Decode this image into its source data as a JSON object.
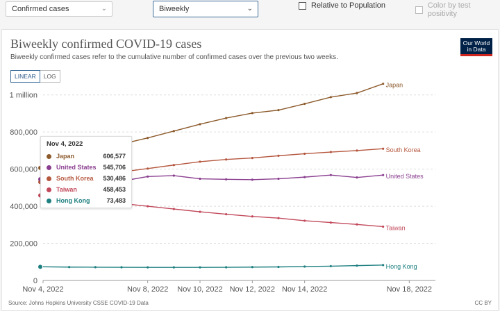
{
  "controls": {
    "metric_select": "Confirmed cases",
    "interval_select": "Biweekly",
    "relative_checkbox": "Relative to Population",
    "color_checkbox": "Color by test positivity"
  },
  "header": {
    "title": "Biweekly confirmed COVID-19 cases",
    "subtitle": "Biweekly confirmed cases refer to the cumulative number of confirmed cases over the previous two weeks.",
    "logo_line1": "Our World",
    "logo_line2": "in Data"
  },
  "scale": {
    "linear_label": "LINEAR",
    "log_label": "LOG",
    "active": "LINEAR"
  },
  "tooltip": {
    "date": "Nov 4, 2022",
    "rows": [
      {
        "name": "Japan",
        "value": "606,577",
        "color": "#8c5a2b"
      },
      {
        "name": "United States",
        "value": "545,706",
        "color": "#8a3e8f"
      },
      {
        "name": "South Korea",
        "value": "530,486",
        "color": "#b5573e"
      },
      {
        "name": "Taiwan",
        "value": "458,453",
        "color": "#c2495b"
      },
      {
        "name": "Hong Kong",
        "value": "73,483",
        "color": "#1e7f80"
      }
    ]
  },
  "footer": {
    "source": "Source: Johns Hopkins University CSSE COVID-19 Data",
    "license": "CC BY"
  },
  "chart_data": {
    "type": "line",
    "x": [
      "2022-11-04",
      "2022-11-05",
      "2022-11-06",
      "2022-11-07",
      "2022-11-08",
      "2022-11-09",
      "2022-11-10",
      "2022-11-11",
      "2022-11-12",
      "2022-11-13",
      "2022-11-14",
      "2022-11-15",
      "2022-11-16",
      "2022-11-17",
      "2022-11-18",
      "2022-11-19"
    ],
    "xtick_labels": [
      {
        "date": "2022-11-04",
        "label": "Nov 4, 2022"
      },
      {
        "date": "2022-11-08",
        "label": "Nov 8, 2022"
      },
      {
        "date": "2022-11-10",
        "label": "Nov 10, 2022"
      },
      {
        "date": "2022-11-12",
        "label": "Nov 12, 2022"
      },
      {
        "date": "2022-11-14",
        "label": "Nov 14, 2022"
      },
      {
        "date": "2022-11-18",
        "label": "Nov 18, 2022"
      }
    ],
    "yticks": [
      {
        "value": 0,
        "label": "0"
      },
      {
        "value": 200000,
        "label": "200,000"
      },
      {
        "value": 400000,
        "label": "400,000"
      },
      {
        "value": 600000,
        "label": "600,000"
      },
      {
        "value": 800000,
        "label": "800,000"
      },
      {
        "value": 1000000,
        "label": "1 million"
      }
    ],
    "ylim": [
      0,
      1070000
    ],
    "grid": "horizontal",
    "legend": "right end labels",
    "series": [
      {
        "name": "Japan",
        "color": "#8c5a2b",
        "values": [
          606577,
          650000,
          700000,
          735000,
          768000,
          805000,
          842000,
          875000,
          902000,
          918000,
          952000,
          988000,
          1010000,
          1060000,
          null,
          null
        ]
      },
      {
        "name": "South Korea",
        "color": "#b5573e",
        "values": [
          530486,
          548000,
          565000,
          585000,
          603000,
          622000,
          640000,
          652000,
          660000,
          672000,
          683000,
          692000,
          700000,
          710000,
          null,
          null
        ]
      },
      {
        "name": "United States",
        "color": "#8a3e8f",
        "values": [
          545706,
          540000,
          548000,
          535000,
          560000,
          565000,
          548000,
          545000,
          543000,
          548000,
          557000,
          568000,
          555000,
          568000,
          null,
          null
        ]
      },
      {
        "name": "Taiwan",
        "color": "#c2495b",
        "values": [
          458453,
          445000,
          433000,
          415000,
          400000,
          385000,
          370000,
          357000,
          345000,
          336000,
          322000,
          312000,
          302000,
          290000,
          null,
          null
        ]
      },
      {
        "name": "Hong Kong",
        "color": "#1e7f80",
        "values": [
          73483,
          72000,
          71500,
          71000,
          70500,
          70500,
          70500,
          71000,
          72000,
          73000,
          75000,
          77000,
          80000,
          83000,
          null,
          null
        ]
      }
    ]
  }
}
